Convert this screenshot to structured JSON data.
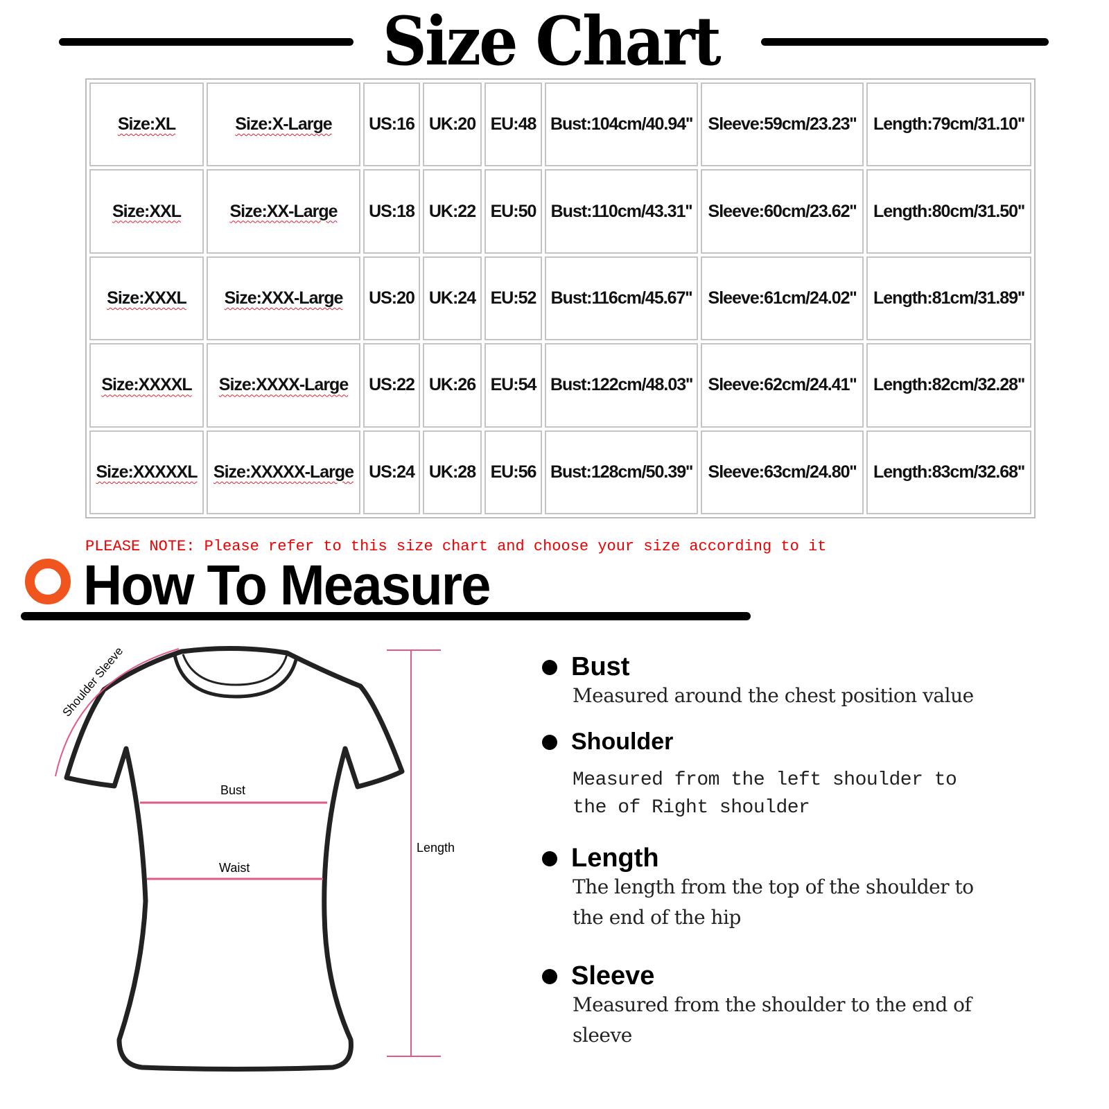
{
  "title": "Size Chart",
  "table": {
    "rows": [
      [
        "Size:XL",
        "Size:X-Large",
        "US:16",
        "UK:20",
        "EU:48",
        "Bust:104cm/40.94''",
        "Sleeve:59cm/23.23''",
        "Length:79cm/31.10''"
      ],
      [
        "Size:XXL",
        "Size:XX-Large",
        "US:18",
        "UK:22",
        "EU:50",
        "Bust:110cm/43.31''",
        "Sleeve:60cm/23.62''",
        "Length:80cm/31.50''"
      ],
      [
        "Size:XXXL",
        "Size:XXX-Large",
        "US:20",
        "UK:24",
        "EU:52",
        "Bust:116cm/45.67''",
        "Sleeve:61cm/24.02''",
        "Length:81cm/31.89''"
      ],
      [
        "Size:XXXXL",
        "Size:XXXX-Large",
        "US:22",
        "UK:26",
        "EU:54",
        "Bust:122cm/48.03''",
        "Sleeve:62cm/24.41''",
        "Length:82cm/32.28''"
      ],
      [
        "Size:XXXXXL",
        "Size:XXXXX-Large",
        "US:24",
        "UK:28",
        "EU:56",
        "Bust:128cm/50.39''",
        "Sleeve:63cm/24.80''",
        "Length:83cm/32.68''"
      ]
    ]
  },
  "note": "PLEASE NOTE: Please refer to this size chart and choose your size according to it",
  "how_to_measure": {
    "title": "How To Measure",
    "accent_color": "#f0551e",
    "diagram_labels": {
      "shoulder_sleeve": "Shoulder Sleeve",
      "bust": "Bust",
      "waist": "Waist",
      "length": "Length"
    },
    "items": [
      {
        "label": "Bust",
        "desc": "Measured around the chest position value"
      },
      {
        "label": "Shoulder",
        "desc": "Measured from the left shoulder to the of Right shoulder"
      },
      {
        "label": "Length",
        "desc": "The length from the top of the shoulder to the end of the hip"
      },
      {
        "label": "Sleeve",
        "desc": "Measured from the shoulder to the end of sleeve"
      }
    ]
  }
}
